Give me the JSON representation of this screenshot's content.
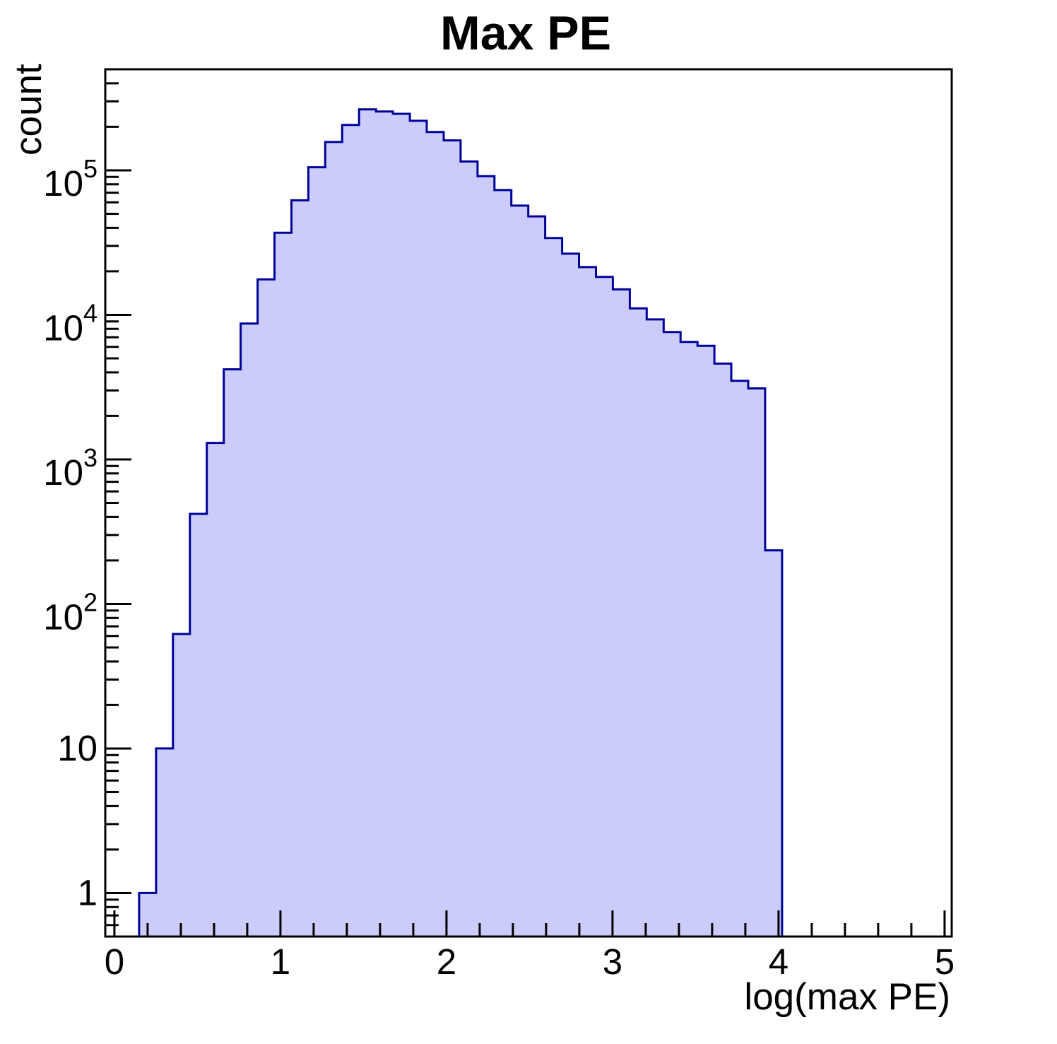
{
  "chart_data": {
    "type": "histogram",
    "title": "Max PE",
    "xlabel": "log(max PE)",
    "ylabel": "count",
    "y_scale": "log",
    "x_range": [
      -0.055,
      5.043
    ],
    "y_range": [
      0.5,
      500000
    ],
    "grid": false,
    "legend": "none",
    "x_major_ticks": [
      0,
      1,
      2,
      3,
      4,
      5
    ],
    "x_tick_labels": [
      "0",
      "1",
      "2",
      "3",
      "4",
      "5"
    ],
    "x_minor_tick_step": 0.2,
    "y_major_ticks": [
      1,
      10,
      100,
      1000,
      10000,
      100000
    ],
    "y_tick_labels": [
      {
        "value": 1,
        "text": "1",
        "sup": ""
      },
      {
        "value": 10,
        "text": "10",
        "sup": ""
      },
      {
        "value": 100,
        "text": "10",
        "sup": "2"
      },
      {
        "value": 1000,
        "text": "10",
        "sup": "3"
      },
      {
        "value": 10000,
        "text": "10",
        "sup": "4"
      },
      {
        "value": 100000,
        "text": "10",
        "sup": "5"
      }
    ],
    "bin_start": 0.149,
    "bin_width": 0.1019,
    "counts": [
      1,
      10,
      62,
      420,
      1300,
      4200,
      8700,
      17600,
      37000,
      62000,
      105000,
      157000,
      206000,
      264000,
      255000,
      246000,
      220000,
      184000,
      161000,
      115000,
      91000,
      73000,
      57000,
      48000,
      34000,
      26500,
      21400,
      18300,
      15000,
      11100,
      9300,
      7600,
      6500,
      6100,
      4600,
      3500,
      3100,
      235
    ],
    "colors": {
      "fill": "#ccccfa",
      "line": "#000099",
      "axis": "#000000",
      "text": "#000000",
      "background": "#ffffff"
    }
  }
}
